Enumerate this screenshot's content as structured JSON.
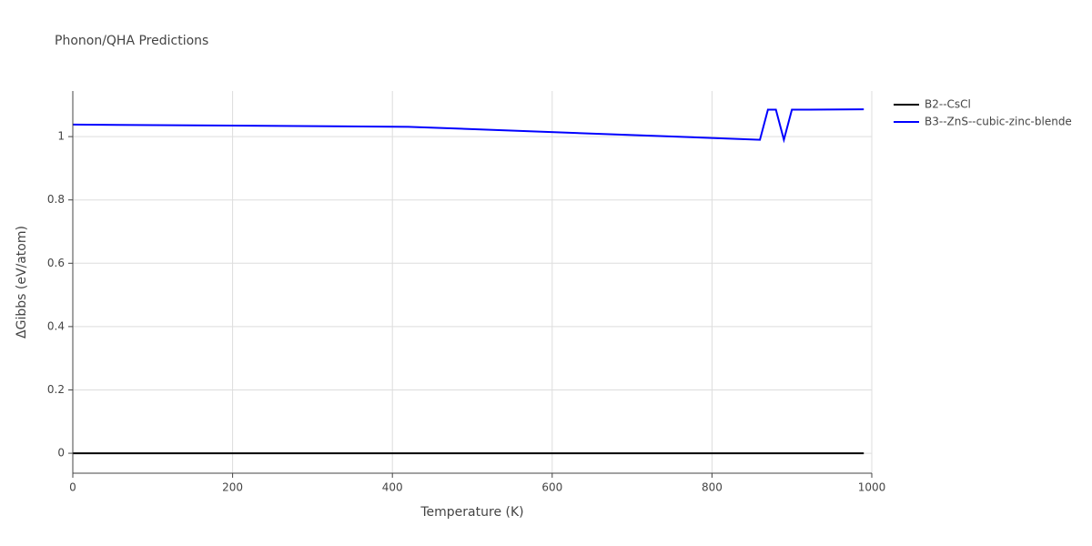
{
  "chart_data": {
    "type": "line",
    "title": "Phonon/QHA Predictions",
    "x_label": "Temperature (K)",
    "y_label": "ΔGibbs (eV/atom)",
    "x": [
      0,
      420,
      860,
      870,
      880,
      890,
      900,
      990
    ],
    "series": [
      {
        "name": "B2--CsCl",
        "color": "#000000",
        "values": [
          0,
          0,
          0,
          0,
          0,
          0,
          0,
          0
        ]
      },
      {
        "name": "B3--ZnS--cubic-zinc-blende",
        "color": "#0000ff",
        "values": [
          1.038,
          1.031,
          0.99,
          1.085,
          1.085,
          0.99,
          1.085,
          1.086
        ]
      }
    ],
    "xlim": [
      0,
      1000
    ],
    "xticks": [
      0,
      200,
      400,
      600,
      800,
      1000
    ],
    "ylim": [
      -0.063,
      1.144
    ],
    "yticks": [
      0,
      0.2,
      0.4,
      0.6,
      0.8,
      1
    ],
    "grid": true,
    "legend": "outside-right"
  }
}
